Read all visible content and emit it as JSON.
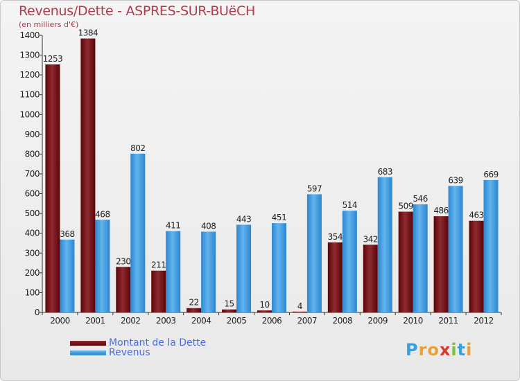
{
  "chart_data": {
    "type": "bar",
    "title": "Revenus/Dette - ASPRES-SUR-BUëCH",
    "ylabel": "(en milliers d'€)",
    "xlabel": "",
    "categories": [
      "2000",
      "2001",
      "2002",
      "2003",
      "2004",
      "2005",
      "2006",
      "2007",
      "2008",
      "2009",
      "2010",
      "2011",
      "2012"
    ],
    "series": [
      {
        "name": "Montant de la Dette",
        "color": "#6b0a0e",
        "values": [
          1253,
          1384,
          230,
          211,
          22,
          15,
          10,
          4,
          354,
          342,
          509,
          486,
          463
        ]
      },
      {
        "name": "Revenus",
        "color": "#3f9be0",
        "values": [
          368,
          468,
          802,
          411,
          408,
          443,
          451,
          597,
          514,
          683,
          546,
          639,
          669
        ]
      }
    ],
    "ylim": [
      0,
      1400
    ],
    "yticks": [
      0,
      100,
      200,
      300,
      400,
      500,
      600,
      700,
      800,
      900,
      1000,
      1100,
      1200,
      1300,
      1400
    ],
    "grid": false,
    "legend": "bottom-left"
  },
  "logo": {
    "letters": [
      "P",
      "r",
      "o",
      "x",
      "i",
      "t",
      "i"
    ],
    "colors": [
      "#3aa0e0",
      "#e8a23a",
      "#e8a23a",
      "#d63a2a",
      "#7fbf3a",
      "#3aa0e0",
      "#e8a23a"
    ]
  }
}
